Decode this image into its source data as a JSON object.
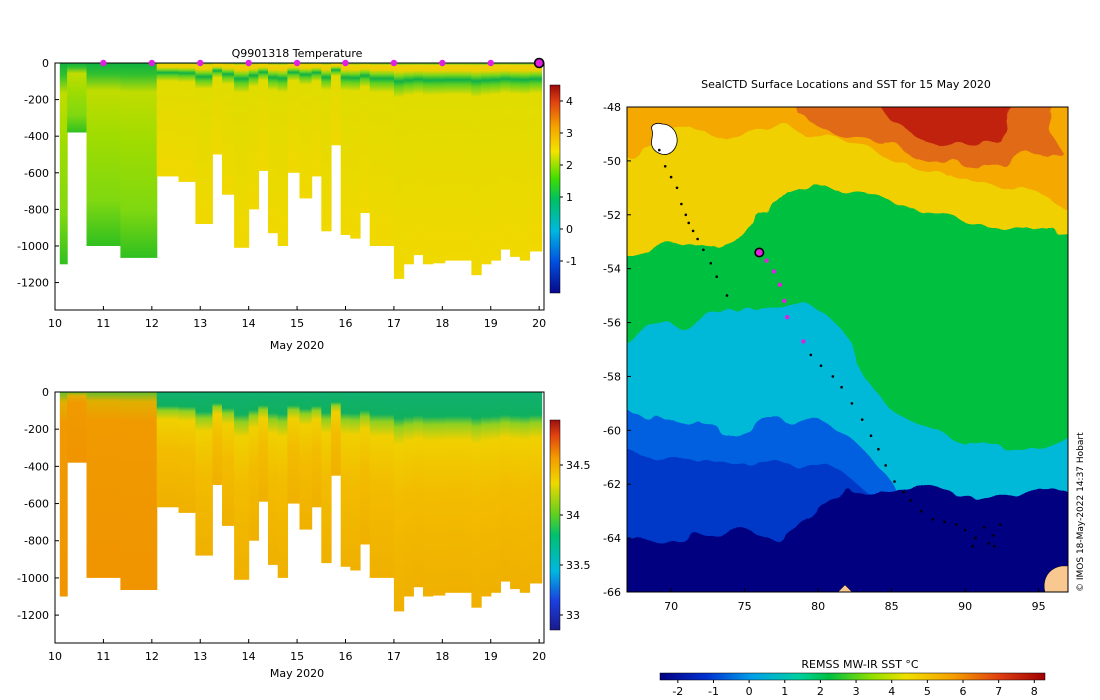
{
  "chart_data": [
    {
      "type": "heatmap",
      "title": "Q9901318  Temperature",
      "xlabel": "May 2020",
      "ylabel": "",
      "x_ticks": [
        "10",
        "11",
        "12",
        "13",
        "14",
        "15",
        "16",
        "17",
        "18",
        "19",
        "20"
      ],
      "xlim": [
        10,
        20.1
      ],
      "y_ticks": [
        "0",
        "-200",
        "-400",
        "-600",
        "-800",
        "-1000",
        "-1200"
      ],
      "ylim": [
        -1350,
        0
      ],
      "colorbar": {
        "ticks": [
          "-1",
          "0",
          "1",
          "2",
          "3",
          "4"
        ],
        "range": [
          -2,
          4.5
        ]
      },
      "marker_days": [
        11,
        12,
        13,
        14,
        15,
        16,
        17,
        18,
        19
      ],
      "current_day": 20,
      "profiles": [
        {
          "day": 10.1,
          "depth": 1100
        },
        {
          "day": 10.4,
          "depth": 380
        },
        {
          "day": 10.9,
          "depth": 1000
        },
        {
          "day": 11.8,
          "depth": 1065
        },
        {
          "day": 12.4,
          "depth": 620
        },
        {
          "day": 12.7,
          "depth": 650
        },
        {
          "day": 13.1,
          "depth": 880
        },
        {
          "day": 13.4,
          "depth": 500
        },
        {
          "day": 13.5,
          "depth": 720
        },
        {
          "day": 13.9,
          "depth": 1010
        },
        {
          "day": 14.1,
          "depth": 800
        },
        {
          "day": 14.3,
          "depth": 590
        },
        {
          "day": 14.5,
          "depth": 930
        },
        {
          "day": 14.7,
          "depth": 1000
        },
        {
          "day": 14.9,
          "depth": 600
        },
        {
          "day": 15.2,
          "depth": 740
        },
        {
          "day": 15.4,
          "depth": 620
        },
        {
          "day": 15.6,
          "depth": 920
        },
        {
          "day": 15.8,
          "depth": 450
        },
        {
          "day": 16.0,
          "depth": 940
        },
        {
          "day": 16.2,
          "depth": 960
        },
        {
          "day": 16.4,
          "depth": 820
        },
        {
          "day": 16.6,
          "depth": 1000
        },
        {
          "day": 16.9,
          "depth": 1000
        },
        {
          "day": 17.1,
          "depth": 1180
        },
        {
          "day": 17.3,
          "depth": 1100
        },
        {
          "day": 17.5,
          "depth": 1050
        },
        {
          "day": 17.7,
          "depth": 1100
        },
        {
          "day": 17.9,
          "depth": 1095
        },
        {
          "day": 18.2,
          "depth": 1080
        },
        {
          "day": 18.5,
          "depth": 1080
        },
        {
          "day": 18.7,
          "depth": 1160
        },
        {
          "day": 18.9,
          "depth": 1100
        },
        {
          "day": 19.1,
          "depth": 1080
        },
        {
          "day": 19.3,
          "depth": 1020
        },
        {
          "day": 19.5,
          "depth": 1060
        },
        {
          "day": 19.7,
          "depth": 1080
        },
        {
          "day": 19.9,
          "depth": 1030
        }
      ]
    },
    {
      "type": "heatmap",
      "title": "",
      "xlabel": "May 2020",
      "ylabel": "",
      "x_ticks": [
        "10",
        "11",
        "12",
        "13",
        "14",
        "15",
        "16",
        "17",
        "18",
        "19",
        "20"
      ],
      "xlim": [
        10,
        20.1
      ],
      "y_ticks": [
        "0",
        "-200",
        "-400",
        "-600",
        "-800",
        "-1000",
        "-1200"
      ],
      "ylim": [
        -1350,
        0
      ],
      "colorbar": {
        "ticks": [
          "33",
          "33.5",
          "34",
          "34.5"
        ],
        "range": [
          32.85,
          34.95
        ]
      }
    },
    {
      "type": "heatmap",
      "title": "SealCTD Surface Locations and SST for 15 May 2020",
      "xlabel": "",
      "ylabel": "",
      "x_ticks": [
        "70",
        "75",
        "80",
        "85",
        "90",
        "95"
      ],
      "xlim": [
        67,
        97
      ],
      "y_ticks": [
        "-48",
        "-50",
        "-52",
        "-54",
        "-56",
        "-58",
        "-60",
        "-62",
        "-64",
        "-66"
      ],
      "ylim": [
        -66,
        -48
      ],
      "colorbar": {
        "label": "REMSS MW-IR SST °C",
        "ticks": [
          "-2",
          "-1",
          "0",
          "1",
          "2",
          "3",
          "4",
          "5",
          "6",
          "7",
          "8"
        ],
        "range": [
          -2.5,
          8.3
        ]
      },
      "track_current": {
        "lon": 76,
        "lat": -53.4
      },
      "track_recent": [
        {
          "lon": 76.5,
          "lat": -53.7
        },
        {
          "lon": 77.0,
          "lat": -54.1
        },
        {
          "lon": 77.4,
          "lat": -54.6
        },
        {
          "lon": 77.7,
          "lat": -55.2
        },
        {
          "lon": 77.9,
          "lat": -55.8
        },
        {
          "lon": 79.0,
          "lat": -56.7
        }
      ]
    }
  ],
  "credit": "© IMOS 18-May-2022 14:37 Hobart"
}
